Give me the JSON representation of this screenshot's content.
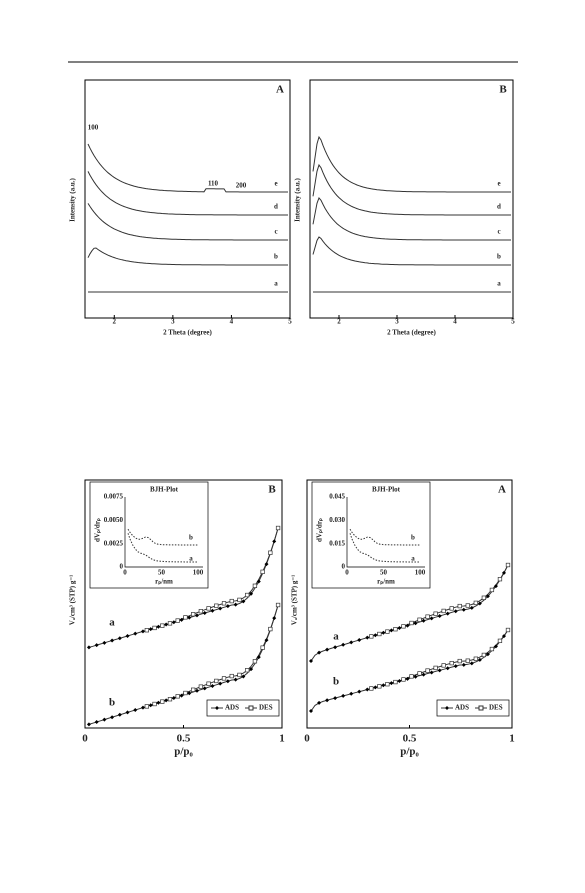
{
  "figure1": {
    "panels": [
      {
        "label": "A",
        "y_label": "Intensity (a.u.)",
        "x_label": "2 Theta (degree)",
        "x_ticks": [
          "2",
          "3",
          "4",
          "5"
        ],
        "curve_labels": [
          "e",
          "d",
          "c",
          "b",
          "a"
        ],
        "peak_labels": [
          "100",
          "110",
          "200"
        ]
      },
      {
        "label": "B",
        "y_label": "Intensity (a.u.)",
        "x_label": "2 Theta (degree)",
        "x_ticks": [
          "2",
          "3",
          "4",
          "5"
        ],
        "curve_labels": [
          "e",
          "d",
          "c",
          "b",
          "a"
        ]
      }
    ]
  },
  "figure2": {
    "panels": [
      {
        "label": "B",
        "y_label": "Vₐ/cm³ (STP) g⁻¹",
        "x_label": "p/p₀",
        "x_ticks": [
          "0",
          "0.5",
          "1"
        ],
        "curve_labels": [
          "a",
          "b"
        ],
        "legend": [
          "ADS",
          "DES"
        ],
        "inset": {
          "title": "BJH-Plot",
          "y_label": "dVₚ/drₚ",
          "x_label": "rₚ/nm",
          "y_ticks": [
            "0.0075",
            "0.0050",
            "0.0025",
            "0"
          ],
          "x_ticks": [
            "0",
            "50",
            "100"
          ],
          "curve_labels": [
            "b",
            "a"
          ]
        }
      },
      {
        "label": "A",
        "y_label": "Vₐ/cm³ (STP) g⁻¹",
        "x_label": "p/p₀",
        "x_ticks": [
          "0",
          "0.5",
          "1"
        ],
        "curve_labels": [
          "a",
          "b"
        ],
        "legend": [
          "ADS",
          "DES"
        ],
        "inset": {
          "title": "BJH-Plot",
          "y_label": "dVₚ/drₚ",
          "x_label": "rₚ/nm",
          "y_ticks": [
            "0.045",
            "0.030",
            "0.015",
            "0"
          ],
          "x_ticks": [
            "0",
            "50",
            "100"
          ],
          "curve_labels": [
            "b",
            "a"
          ]
        }
      }
    ]
  }
}
